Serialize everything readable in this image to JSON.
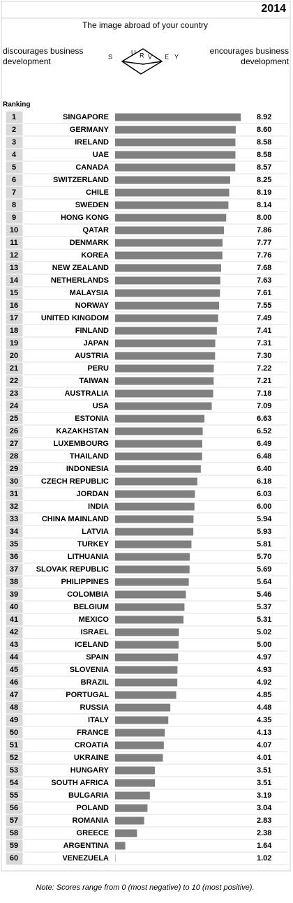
{
  "chart_data": {
    "type": "bar",
    "orientation": "horizontal",
    "year": "2014",
    "title": "The image abroad of your country",
    "left_label": [
      "discourages business",
      "development"
    ],
    "right_label": [
      "encourages business",
      "development"
    ],
    "logo_letters": [
      "S",
      "U",
      "R",
      "V",
      "E",
      "Y"
    ],
    "ranking_label": "Ranking",
    "ranks": [
      1,
      2,
      3,
      4,
      5,
      6,
      7,
      8,
      9,
      10,
      11,
      12,
      13,
      14,
      15,
      16,
      17,
      18,
      19,
      20,
      21,
      22,
      23,
      24,
      25,
      26,
      27,
      28,
      29,
      30,
      31,
      32,
      33,
      34,
      35,
      36,
      37,
      38,
      39,
      40,
      41,
      42,
      43,
      44,
      45,
      46,
      47,
      48,
      49,
      50,
      51,
      52,
      53,
      54,
      55,
      56,
      57,
      58,
      59,
      60
    ],
    "categories": [
      "SINGAPORE",
      "GERMANY",
      "IRELAND",
      "UAE",
      "CANADA",
      "SWITZERLAND",
      "CHILE",
      "SWEDEN",
      "HONG KONG",
      "QATAR",
      "DENMARK",
      "KOREA",
      "NEW ZEALAND",
      "NETHERLANDS",
      "MALAYSIA",
      "NORWAY",
      "UNITED KINGDOM",
      "FINLAND",
      "JAPAN",
      "AUSTRIA",
      "PERU",
      "TAIWAN",
      "AUSTRALIA",
      "USA",
      "ESTONIA",
      "KAZAKHSTAN",
      "LUXEMBOURG",
      "THAILAND",
      "INDONESIA",
      "CZECH REPUBLIC",
      "JORDAN",
      "INDIA",
      "CHINA MAINLAND",
      "LATVIA",
      "TURKEY",
      "LITHUANIA",
      "SLOVAK REPUBLIC",
      "PHILIPPINES",
      "COLOMBIA",
      "BELGIUM",
      "MEXICO",
      "ISRAEL",
      "ICELAND",
      "SPAIN",
      "SLOVENIA",
      "BRAZIL",
      "PORTUGAL",
      "RUSSIA",
      "ITALY",
      "FRANCE",
      "CROATIA",
      "UKRAINE",
      "HUNGARY",
      "SOUTH AFRICA",
      "BULGARIA",
      "POLAND",
      "ROMANIA",
      "GREECE",
      "ARGENTINA",
      "VENEZUELA"
    ],
    "values": [
      8.92,
      8.6,
      8.58,
      8.58,
      8.57,
      8.25,
      8.19,
      8.14,
      8.0,
      7.86,
      7.77,
      7.76,
      7.68,
      7.63,
      7.61,
      7.55,
      7.49,
      7.41,
      7.31,
      7.3,
      7.22,
      7.21,
      7.18,
      7.09,
      6.63,
      6.52,
      6.49,
      6.48,
      6.4,
      6.18,
      6.03,
      6.0,
      5.94,
      5.93,
      5.81,
      5.7,
      5.69,
      5.64,
      5.46,
      5.37,
      5.31,
      5.02,
      5.0,
      4.97,
      4.93,
      4.92,
      4.85,
      4.48,
      4.35,
      4.13,
      4.07,
      4.01,
      3.51,
      3.51,
      3.19,
      3.04,
      2.83,
      2.38,
      1.64,
      1.02
    ],
    "value_labels": [
      "8.92",
      "8.60",
      "8.58",
      "8.58",
      "8.57",
      "8.25",
      "8.19",
      "8.14",
      "8.00",
      "7.86",
      "7.77",
      "7.76",
      "7.68",
      "7.63",
      "7.61",
      "7.55",
      "7.49",
      "7.41",
      "7.31",
      "7.30",
      "7.22",
      "7.21",
      "7.18",
      "7.09",
      "6.63",
      "6.52",
      "6.49",
      "6.48",
      "6.40",
      "6.18",
      "6.03",
      "6.00",
      "5.94",
      "5.93",
      "5.81",
      "5.70",
      "5.69",
      "5.64",
      "5.46",
      "5.37",
      "5.31",
      "5.02",
      "5.00",
      "4.97",
      "4.93",
      "4.92",
      "4.85",
      "4.48",
      "4.35",
      "4.13",
      "4.07",
      "4.01",
      "3.51",
      "3.51",
      "3.19",
      "3.04",
      "2.83",
      "2.38",
      "1.64",
      "1.02"
    ],
    "xlim": [
      1,
      9
    ],
    "color": "#808080",
    "note": "Note: Scores range from 0 (most negative) to 10 (most positive)."
  }
}
